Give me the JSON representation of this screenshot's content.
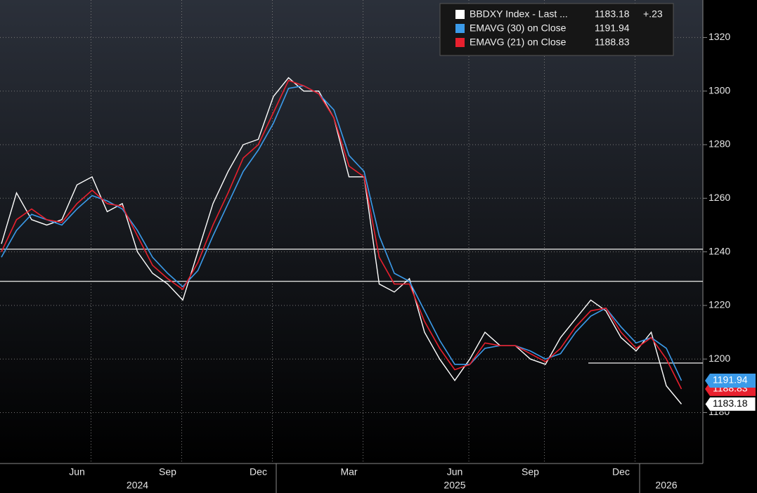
{
  "chart_data": {
    "type": "line",
    "categories": [
      null,
      null,
      null,
      null,
      null,
      "Jun",
      null,
      null,
      null,
      null,
      null,
      "Sep",
      null,
      null,
      null,
      null,
      null,
      "Dec",
      null,
      null,
      null,
      null,
      null,
      "Mar",
      null,
      null,
      null,
      null,
      null,
      null,
      "Jun",
      null,
      null,
      null,
      null,
      "Sep",
      null,
      null,
      null,
      null,
      null,
      "Dec",
      null,
      null,
      null,
      null
    ],
    "x_group_labels": [
      null,
      null,
      null,
      null,
      null,
      null,
      null,
      null,
      null,
      "2024",
      null,
      null,
      null,
      null,
      null,
      null,
      null,
      null,
      null,
      null,
      null,
      null,
      null,
      null,
      null,
      null,
      null,
      null,
      null,
      null,
      "2025",
      null,
      null,
      null,
      null,
      null,
      null,
      null,
      null,
      null,
      null,
      null,
      null,
      null,
      "2026",
      null
    ],
    "series": [
      {
        "name": "BBDXY Index - Last ...",
        "color": "#ffffff",
        "change": "+.23",
        "values": [
          1243,
          1262,
          1252,
          1250,
          1252,
          1265,
          1268,
          1255,
          1258,
          1240,
          1232,
          1228,
          1222,
          1240,
          1258,
          1270,
          1280,
          1282,
          1298,
          1305,
          1300,
          1300,
          1290,
          1268,
          1268,
          1228,
          1225,
          1230,
          1210,
          1200,
          1192,
          1200,
          1210,
          1205,
          1205,
          1200,
          1198,
          1208,
          1215,
          1222,
          1218,
          1208,
          1203,
          1210,
          1190,
          1183.18
        ]
      },
      {
        "name": "EMAVG (30)  on Close",
        "color": "#3b9bea",
        "values": [
          1238,
          1248,
          1254,
          1252,
          1250,
          1256,
          1261,
          1259,
          1256,
          1248,
          1238,
          1232,
          1227,
          1233,
          1246,
          1258,
          1270,
          1278,
          1288,
          1301,
          1302,
          1299,
          1293,
          1276,
          1270,
          1246,
          1232,
          1229,
          1218,
          1207,
          1198,
          1198,
          1204,
          1205,
          1205,
          1203,
          1200,
          1202,
          1210,
          1216,
          1219,
          1212,
          1206,
          1208,
          1204,
          1191.94
        ]
      },
      {
        "name": "EMAVG (21)  on Close",
        "color": "#e8202e",
        "values": [
          1240,
          1252,
          1256,
          1252,
          1251,
          1258,
          1263,
          1258,
          1257,
          1246,
          1235,
          1230,
          1226,
          1236,
          1250,
          1262,
          1275,
          1280,
          1292,
          1304,
          1302,
          1299,
          1290,
          1272,
          1268,
          1238,
          1228,
          1228,
          1214,
          1204,
          1196,
          1198,
          1206,
          1205,
          1205,
          1202,
          1199,
          1204,
          1212,
          1218,
          1219,
          1210,
          1204,
          1208,
          1200,
          1188.83
        ]
      }
    ],
    "reference_lines": [
      1241,
      1229,
      1198.5
    ],
    "ylim": [
      1161,
      1334
    ],
    "yticks": [
      1180,
      1200,
      1220,
      1240,
      1260,
      1280,
      1300,
      1320
    ],
    "grid": true
  }
}
